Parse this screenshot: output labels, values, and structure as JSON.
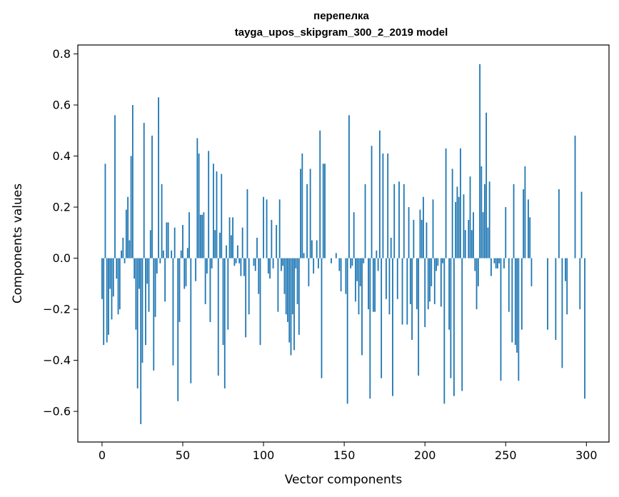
{
  "chart_data": {
    "type": "bar",
    "title": "перепелка",
    "subtitle": "tayga_upos_skipgram_300_2_2019 model",
    "xlabel": "Vector components",
    "ylabel": "Components values",
    "xlim": [
      -15,
      314
    ],
    "ylim": [
      -0.72,
      0.835
    ],
    "xticks": [
      0,
      50,
      100,
      150,
      200,
      250,
      300
    ],
    "yticks": [
      -0.6,
      -0.4,
      -0.2,
      0.0,
      0.2,
      0.4,
      0.6,
      0.8
    ],
    "ytick_labels": [
      "−0.6",
      "−0.4",
      "−0.2",
      "0.0",
      "0.2",
      "0.4",
      "0.6",
      "0.8"
    ],
    "bar_color": "#1f77b4",
    "values": [
      -0.16,
      -0.34,
      0.37,
      -0.33,
      -0.3,
      -0.12,
      -0.24,
      -0.15,
      0.56,
      -0.08,
      -0.22,
      -0.2,
      0.03,
      0.08,
      -0.02,
      0.19,
      0.24,
      0.07,
      0.4,
      0.6,
      -0.08,
      -0.28,
      -0.51,
      -0.12,
      -0.65,
      -0.41,
      0.53,
      -0.34,
      -0.1,
      -0.21,
      0.11,
      0.48,
      -0.44,
      -0.23,
      -0.06,
      0.63,
      -0.02,
      0.29,
      0.03,
      -0.17,
      0.14,
      0.14,
      0.0,
      0.03,
      -0.42,
      0.12,
      0.0,
      -0.56,
      -0.25,
      0.03,
      0.13,
      -0.12,
      -0.11,
      0.04,
      0.18,
      -0.49,
      0.0,
      0.0,
      -0.09,
      0.47,
      0.41,
      0.17,
      0.17,
      0.18,
      -0.18,
      -0.06,
      0.42,
      -0.25,
      -0.04,
      0.37,
      0.11,
      0.34,
      -0.46,
      0.1,
      0.33,
      -0.34,
      -0.51,
      0.05,
      -0.28,
      0.16,
      0.09,
      0.16,
      -0.03,
      -0.02,
      0.05,
      -0.02,
      -0.07,
      0.12,
      -0.07,
      -0.31,
      0.27,
      -0.22,
      0.0,
      0.0,
      -0.03,
      -0.05,
      0.08,
      -0.14,
      -0.34,
      0.0,
      0.24,
      0.0,
      0.23,
      -0.06,
      -0.08,
      0.15,
      -0.04,
      0.0,
      0.13,
      -0.21,
      0.23,
      -0.05,
      -0.03,
      -0.14,
      -0.22,
      -0.25,
      -0.33,
      -0.38,
      -0.22,
      -0.36,
      -0.04,
      -0.18,
      -0.3,
      0.35,
      0.41,
      0.02,
      0.0,
      0.29,
      -0.11,
      0.35,
      0.07,
      -0.06,
      0.0,
      0.07,
      -0.04,
      0.5,
      -0.47,
      0.37,
      0.37,
      0.0,
      0.0,
      0.0,
      -0.02,
      0.0,
      0.0,
      0.02,
      0.0,
      -0.05,
      -0.13,
      0.0,
      0.0,
      -0.14,
      -0.57,
      0.56,
      -0.04,
      -0.03,
      0.18,
      -0.17,
      -0.09,
      -0.22,
      -0.11,
      -0.38,
      -0.02,
      0.29,
      0.0,
      -0.2,
      -0.55,
      0.44,
      -0.21,
      -0.21,
      0.03,
      -0.05,
      0.5,
      -0.47,
      0.41,
      0.0,
      -0.16,
      0.41,
      -0.22,
      0.08,
      -0.54,
      0.29,
      0.0,
      -0.16,
      0.3,
      0.0,
      -0.26,
      0.29,
      0.0,
      -0.26,
      0.2,
      -0.18,
      -0.32,
      0.15,
      0.0,
      -0.2,
      -0.46,
      0.19,
      0.15,
      0.24,
      -0.27,
      0.14,
      -0.2,
      -0.17,
      -0.11,
      0.23,
      -0.18,
      -0.05,
      -0.03,
      0.0,
      -0.19,
      -0.02,
      -0.57,
      0.43,
      0.0,
      -0.28,
      -0.47,
      0.35,
      -0.54,
      0.22,
      0.28,
      0.24,
      0.43,
      -0.52,
      0.25,
      0.11,
      0.0,
      0.15,
      0.32,
      0.11,
      0.18,
      -0.05,
      -0.2,
      -0.11,
      0.76,
      0.36,
      0.18,
      0.29,
      0.57,
      0.12,
      0.3,
      -0.07,
      0.0,
      -0.02,
      -0.04,
      -0.04,
      -0.02,
      -0.48,
      0.0,
      -0.04,
      0.2,
      0.0,
      -0.21,
      0.0,
      -0.33,
      0.29,
      -0.34,
      -0.37,
      -0.48,
      0.0,
      -0.28,
      0.27,
      0.36,
      0.0,
      0.23,
      0.16,
      -0.11,
      0.0,
      0.0,
      0.0,
      0.0,
      0.0,
      0.0,
      0.0,
      0.0,
      0.0,
      -0.28,
      0.0,
      0.0,
      0.0,
      0.0,
      -0.32,
      0.0,
      0.27,
      0.0,
      -0.43,
      0.0,
      -0.09,
      -0.22,
      0.0,
      0.0,
      0.0,
      0.0,
      0.48,
      0.0,
      0.0,
      -0.2,
      0.26,
      0.0,
      -0.55
    ]
  }
}
